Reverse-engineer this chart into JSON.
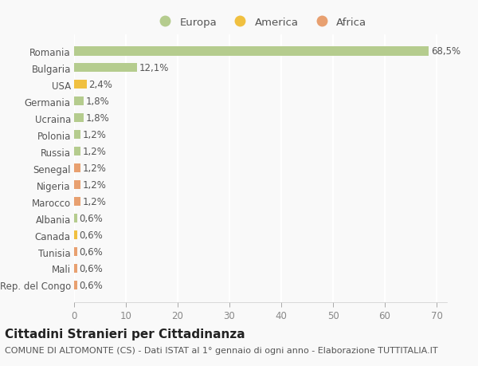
{
  "categories": [
    "Rep. del Congo",
    "Mali",
    "Tunisia",
    "Canada",
    "Albania",
    "Marocco",
    "Nigeria",
    "Senegal",
    "Russia",
    "Polonia",
    "Ucraina",
    "Germania",
    "USA",
    "Bulgaria",
    "Romania"
  ],
  "values": [
    0.6,
    0.6,
    0.6,
    0.6,
    0.6,
    1.2,
    1.2,
    1.2,
    1.2,
    1.2,
    1.8,
    1.8,
    2.4,
    12.1,
    68.5
  ],
  "continents": [
    "Africa",
    "Africa",
    "Africa",
    "America",
    "Europa",
    "Africa",
    "Africa",
    "Africa",
    "Europa",
    "Europa",
    "Europa",
    "Europa",
    "America",
    "Europa",
    "Europa"
  ],
  "labels": [
    "0,6%",
    "0,6%",
    "0,6%",
    "0,6%",
    "0,6%",
    "1,2%",
    "1,2%",
    "1,2%",
    "1,2%",
    "1,2%",
    "1,8%",
    "1,8%",
    "2,4%",
    "12,1%",
    "68,5%"
  ],
  "colors": {
    "Europa": "#b5cc8e",
    "America": "#f0c040",
    "Africa": "#e8a070"
  },
  "title": "Cittadini Stranieri per Cittadinanza",
  "subtitle": "COMUNE DI ALTOMONTE (CS) - Dati ISTAT al 1° gennaio di ogni anno - Elaborazione TUTTITALIA.IT",
  "xlim": [
    0,
    72
  ],
  "xticks": [
    0,
    10,
    20,
    30,
    40,
    50,
    60,
    70
  ],
  "background_color": "#f9f9f9",
  "grid_color": "#ffffff",
  "bar_height": 0.55,
  "title_fontsize": 11,
  "subtitle_fontsize": 8,
  "label_fontsize": 8.5,
  "tick_fontsize": 8.5,
  "legend_fontsize": 9.5
}
